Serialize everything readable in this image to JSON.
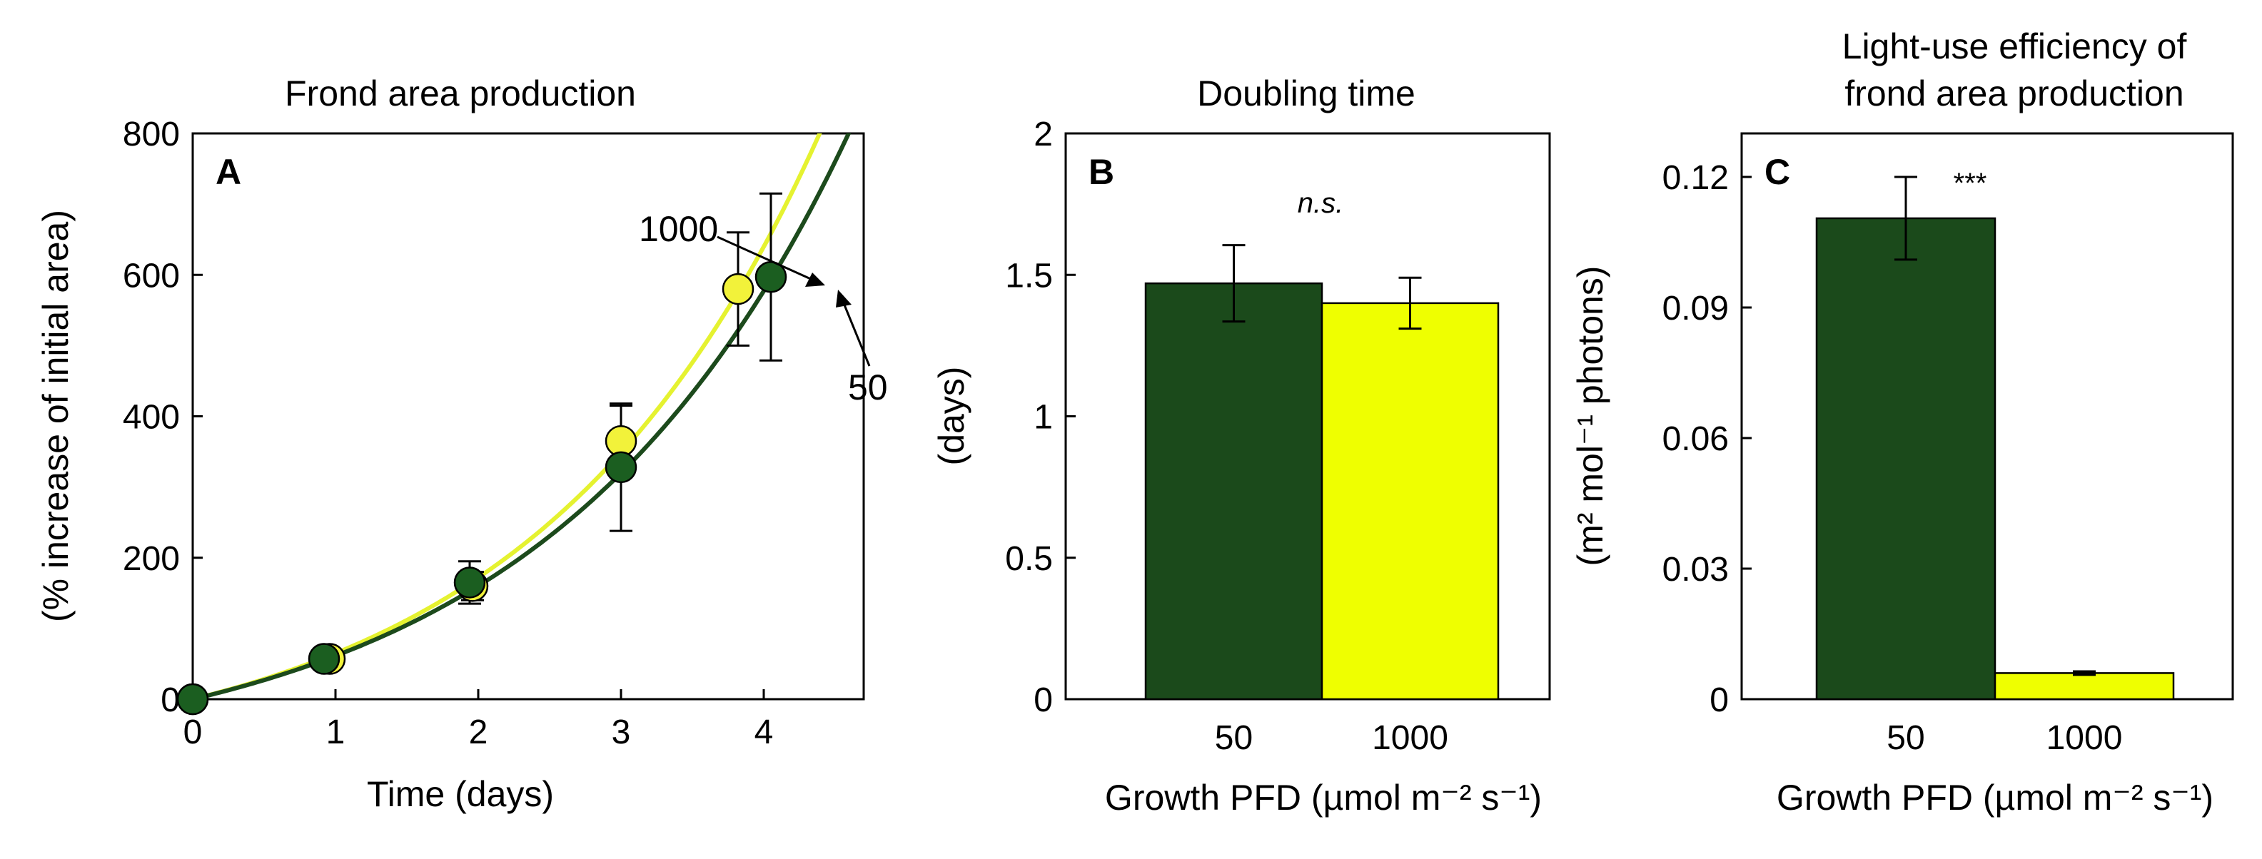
{
  "chart_data": [
    {
      "type": "scatter",
      "panel": "A",
      "title": "Frond area production",
      "xlabel": "Time (days)",
      "ylabel": "(% increase of initial area)",
      "xlim": [
        0,
        4.7
      ],
      "ylim": [
        0,
        800
      ],
      "xticks": [
        0,
        1,
        2,
        3,
        4
      ],
      "yticks": [
        0,
        200,
        400,
        600,
        800
      ],
      "series": [
        {
          "name": "1000",
          "color": "#f2f23a",
          "curve_color": "#e5f230",
          "growth_rate": 0.5003,
          "x": [
            0,
            0.96,
            1.96,
            3.0,
            3.82
          ],
          "y": [
            0,
            57,
            160,
            365,
            580
          ],
          "err": [
            0,
            10,
            20,
            50,
            80
          ]
        },
        {
          "name": "50",
          "color": "#1b5e20",
          "curve_color": "#1c4a1c",
          "growth_rate": 0.4782,
          "x": [
            0,
            0.92,
            1.94,
            3.0,
            4.05
          ],
          "y": [
            0,
            57,
            165,
            328,
            597
          ],
          "err": [
            0,
            10,
            30,
            90,
            118
          ]
        }
      ],
      "annotations": [
        "1000",
        "50"
      ]
    },
    {
      "type": "bar",
      "panel": "B",
      "title": "Doubling time",
      "xlabel": "Growth PFD (µmol m⁻² s⁻¹)",
      "ylabel": "(days)",
      "ylim": [
        0,
        2
      ],
      "yticks": [
        0,
        0.5,
        1,
        1.5,
        2
      ],
      "ytick_labels": [
        "0",
        "0.5",
        "1",
        "1.5",
        "2"
      ],
      "categories": [
        "50",
        "1000"
      ],
      "values": [
        1.47,
        1.4
      ],
      "errors": [
        0.135,
        0.09
      ],
      "colors": [
        "#1b4a1b",
        "#efff00"
      ],
      "significance": "n.s."
    },
    {
      "type": "bar",
      "panel": "C",
      "title_lines": [
        "Light-use efficiency of",
        "frond area production"
      ],
      "xlabel": "Growth PFD (µmol m⁻² s⁻¹)",
      "ylabel": "(m² mol⁻¹ photons)",
      "ylim": [
        0,
        0.13
      ],
      "yticks": [
        0,
        0.03,
        0.06,
        0.09,
        0.12
      ],
      "ytick_labels": [
        "0",
        "0.03",
        "0.06",
        "0.09",
        "0.12"
      ],
      "categories": [
        "50",
        "1000"
      ],
      "values": [
        0.1105,
        0.006
      ],
      "errors": [
        0.0095,
        0.0004
      ],
      "colors": [
        "#1b4a1b",
        "#efff00"
      ],
      "significance": "***"
    }
  ]
}
